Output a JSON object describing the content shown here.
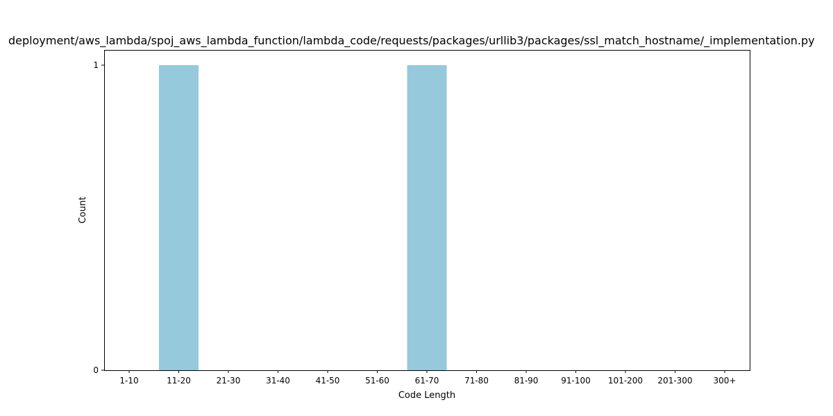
{
  "chart_data": {
    "type": "bar",
    "title": "deployment/aws_lambda/spoj_aws_lambda_function/lambda_code/requests/packages/urllib3/packages/ssl_match_hostname/_implementation.py",
    "xlabel": "Code Length",
    "ylabel": "Count",
    "categories": [
      "1-10",
      "11-20",
      "21-30",
      "31-40",
      "41-50",
      "51-60",
      "61-70",
      "71-80",
      "81-90",
      "91-100",
      "101-200",
      "201-300",
      "300+"
    ],
    "values": [
      0,
      1,
      0,
      0,
      0,
      0,
      1,
      0,
      0,
      0,
      0,
      0,
      0
    ],
    "ylim": [
      0,
      1
    ],
    "yticks": [
      0,
      1
    ],
    "grid": false,
    "bar_color": "#96c9dc"
  }
}
